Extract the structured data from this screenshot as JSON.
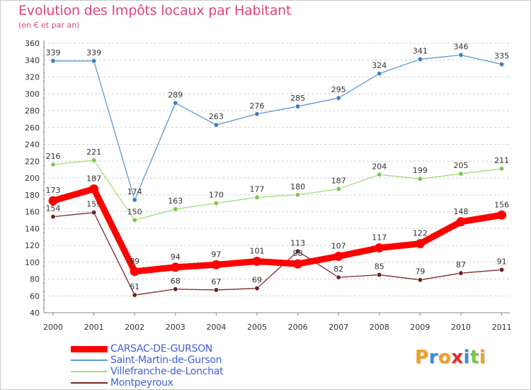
{
  "chart_data": {
    "type": "line",
    "title": "Evolution des Impôts locaux par Habitant",
    "subtitle": "(en € et par an)",
    "xlabel": "",
    "ylabel": "",
    "x": [
      "2000",
      "2001",
      "2002",
      "2003",
      "2004",
      "2005",
      "2006",
      "2007",
      "2008",
      "2009",
      "2010",
      "2011"
    ],
    "yticks": [
      40,
      60,
      80,
      100,
      120,
      140,
      160,
      180,
      200,
      220,
      240,
      260,
      280,
      300,
      320,
      340,
      360
    ],
    "ylim": [
      40,
      360
    ],
    "grid": "horizontal dashed",
    "series": [
      {
        "name": "Saint-Martin-de-Gurson",
        "color": "#5b9bd5",
        "marker": "#3a7fc1",
        "values": [
          339,
          339,
          174,
          289,
          263,
          276,
          285,
          295,
          324,
          341,
          346,
          335
        ],
        "labels": [
          "339",
          "339",
          "174",
          "289",
          "263",
          "276",
          "285",
          "295",
          "324",
          "341",
          "346",
          "335"
        ]
      },
      {
        "name": "Villefranche-de-Lonchat",
        "color": "#a4dd7a",
        "marker": "#7cc64a",
        "values": [
          216,
          221,
          150,
          163,
          170,
          177,
          180,
          187,
          204,
          199,
          205,
          211
        ],
        "labels": [
          "216",
          "221",
          "150",
          "163",
          "170",
          "177",
          "180",
          "187",
          "204",
          "199",
          "205",
          "211"
        ]
      },
      {
        "name": "Montpeyroux",
        "color": "#7a2a2a",
        "marker": "#6b1f1f",
        "values": [
          154,
          159,
          61,
          68,
          67,
          69,
          113,
          82,
          85,
          79,
          87,
          91
        ],
        "labels": [
          "154",
          "159",
          "61",
          "68",
          "67",
          "69",
          "113",
          "82",
          "85",
          "79",
          "87",
          "91"
        ]
      },
      {
        "name": "CARSAC-DE-GURSON",
        "color": "#ff0000",
        "marker": "#ff0000",
        "values": [
          173,
          187,
          89,
          94,
          97,
          101,
          98,
          107,
          117,
          122,
          148,
          156
        ],
        "labels": [
          "173",
          "187",
          "89",
          "94",
          "97",
          "101",
          "98",
          "107",
          "117",
          "122",
          "148",
          "156"
        ]
      }
    ],
    "legend_position": "bottom-left"
  },
  "legend": [
    {
      "name": "CARSAC-DE-GURSON",
      "color": "#ff0000"
    },
    {
      "name": "Saint-Martin-de-Gurson",
      "color": "#5b9bd5"
    },
    {
      "name": "Villefranche-de-Lonchat",
      "color": "#a4dd7a"
    },
    {
      "name": "Montpeyroux",
      "color": "#7a2a2a"
    }
  ],
  "logo": {
    "letters": [
      "P",
      "r",
      "o",
      "x",
      "i",
      "t",
      "i"
    ],
    "colors": [
      "#f0a020",
      "#3a8fd6",
      "#f0a020",
      "#e03030",
      "#3a8fd6",
      "#7cc64a",
      "#f0a020"
    ]
  }
}
